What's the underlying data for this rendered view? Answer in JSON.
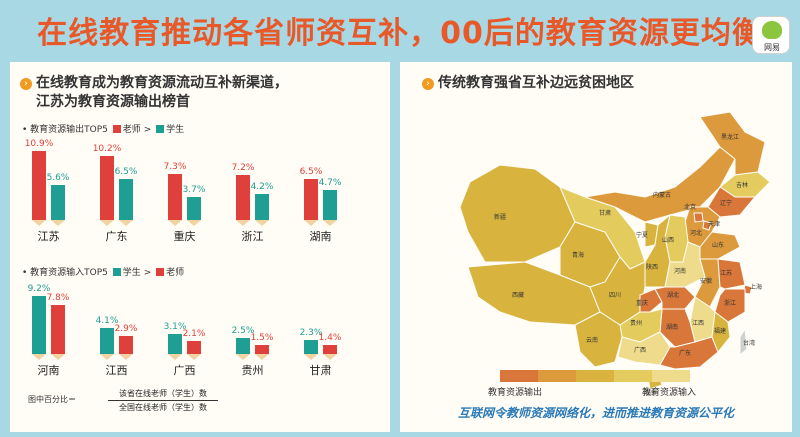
{
  "title": "在线教育推动各省师资互补，00后的教育资源更均衡",
  "logo_text": "网易",
  "left": {
    "heading_line1": "在线教育成为教育资源流动互补新渠道，",
    "heading_line2": "江苏为教育资源输出榜首",
    "output_label": "教育资源输出TOP5",
    "output_legend": {
      "a": "老师",
      "sep": ">",
      "b": "学生"
    },
    "input_label": "教育资源输入TOP5",
    "input_legend": {
      "a": "学生",
      "sep": ">",
      "b": "老师"
    },
    "formula_label": "图中百分比＝",
    "formula_num": "该省在线老师（学生）数",
    "formula_den": "全国在线老师（学生）数"
  },
  "right": {
    "heading": "传统教育强省互补边远贫困地区",
    "legend_left": "教育资源输出",
    "legend_right": "教育资源输入",
    "legend_colors": [
      "#d9763a",
      "#dc9a3c",
      "#d8b43f",
      "#e4cb5e",
      "#eedc8c"
    ],
    "map_labels": [
      "新疆",
      "西藏",
      "青海",
      "甘肃",
      "内蒙古",
      "黑龙江",
      "吉林",
      "辽宁",
      "北京",
      "天津",
      "河北",
      "山西",
      "宁夏",
      "陕西",
      "山东",
      "河南",
      "四川",
      "重庆",
      "湖北",
      "安徽",
      "江苏",
      "上海",
      "浙江",
      "湖南",
      "江西",
      "福建",
      "贵州",
      "云南",
      "广西",
      "广东",
      "海南",
      "台湾",
      "澳门"
    ],
    "footer": "互联网令教师资源网络化，进而推进教育资源公平化"
  },
  "chart_data": [
    {
      "type": "bar",
      "title": "教育资源输出TOP5",
      "categories": [
        "江苏",
        "广东",
        "重庆",
        "浙江",
        "湖南"
      ],
      "series": [
        {
          "name": "老师",
          "color": "#e0403c",
          "values": [
            10.9,
            10.2,
            7.3,
            7.2,
            6.5
          ],
          "labels": [
            "10.9%",
            "10.2%",
            "7.3%",
            "7.2%",
            "6.5%"
          ]
        },
        {
          "name": "学生",
          "color": "#1f9e93",
          "values": [
            5.6,
            6.5,
            3.7,
            4.2,
            4.7
          ],
          "labels": [
            "5.6%",
            "6.5%",
            "3.7%",
            "4.2%",
            "4.7%"
          ]
        }
      ]
    },
    {
      "type": "bar",
      "title": "教育资源输入TOP5",
      "categories": [
        "河南",
        "江西",
        "广西",
        "贵州",
        "甘肃"
      ],
      "series": [
        {
          "name": "学生",
          "color": "#1f9e93",
          "values": [
            9.2,
            4.1,
            3.1,
            2.5,
            2.3
          ],
          "labels": [
            "9.2%",
            "4.1%",
            "3.1%",
            "2.5%",
            "2.3%"
          ]
        },
        {
          "name": "老师",
          "color": "#e0403c",
          "values": [
            7.8,
            2.9,
            2.1,
            1.5,
            1.4
          ],
          "labels": [
            "7.8%",
            "2.9%",
            "2.1%",
            "1.5%",
            "1.4%"
          ]
        }
      ]
    }
  ]
}
